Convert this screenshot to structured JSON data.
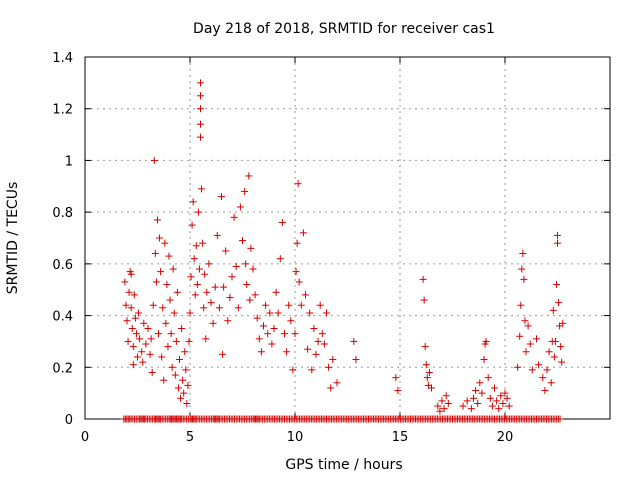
{
  "chart_data": {
    "type": "scatter",
    "title": "Day 218 of 2018, SRMTID for receiver cas1",
    "xlabel": "GPS time / hours",
    "ylabel": "SRMTID / TECUs",
    "xlim": [
      0,
      25
    ],
    "ylim": [
      0,
      1.4
    ],
    "xticks": [
      0,
      5,
      10,
      15,
      20
    ],
    "yticks": [
      0,
      0.2,
      0.4,
      0.6,
      0.8,
      1,
      1.2,
      1.4
    ],
    "xtick_labels": [
      "0",
      "5",
      "10",
      "15",
      "20"
    ],
    "ytick_labels": [
      "0",
      "0.2",
      "0.4",
      "0.6",
      "0.8",
      "1",
      "1.2",
      "1.4"
    ],
    "grid": true,
    "marker": "+",
    "color": "#d40000",
    "series": [
      {
        "name": "cas1",
        "points": [
          [
            1.9,
            0.53
          ],
          [
            1.95,
            0.44
          ],
          [
            2.0,
            0.38
          ],
          [
            2.05,
            0.3
          ],
          [
            2.1,
            0.49
          ],
          [
            2.15,
            0.57
          ],
          [
            2.2,
            0.56
          ],
          [
            2.2,
            0.43
          ],
          [
            2.25,
            0.35
          ],
          [
            2.3,
            0.28
          ],
          [
            2.3,
            0.21
          ],
          [
            2.35,
            0.48
          ],
          [
            2.4,
            0.39
          ],
          [
            2.45,
            0.33
          ],
          [
            2.5,
            0.24
          ],
          [
            2.55,
            0.41
          ],
          [
            2.6,
            0.31
          ],
          [
            2.7,
            0.26
          ],
          [
            2.75,
            0.22
          ],
          [
            2.8,
            0.37
          ],
          [
            2.9,
            0.29
          ],
          [
            3.0,
            0.35
          ],
          [
            3.1,
            0.25
          ],
          [
            3.15,
            0.31
          ],
          [
            3.2,
            0.18
          ],
          [
            3.25,
            0.44
          ],
          [
            3.3,
            1.0
          ],
          [
            3.35,
            0.64
          ],
          [
            3.4,
            0.53
          ],
          [
            3.45,
            0.77
          ],
          [
            3.5,
            0.33
          ],
          [
            3.55,
            0.7
          ],
          [
            3.6,
            0.57
          ],
          [
            3.65,
            0.24
          ],
          [
            3.7,
            0.43
          ],
          [
            3.75,
            0.15
          ],
          [
            3.8,
            0.68
          ],
          [
            3.85,
            0.37
          ],
          [
            3.9,
            0.52
          ],
          [
            3.95,
            0.28
          ],
          [
            4.0,
            0.63
          ],
          [
            4.05,
            0.46
          ],
          [
            4.1,
            0.33
          ],
          [
            4.15,
            0.2
          ],
          [
            4.2,
            0.58
          ],
          [
            4.25,
            0.41
          ],
          [
            4.3,
            0.17
          ],
          [
            4.35,
            0.3
          ],
          [
            4.4,
            0.49
          ],
          [
            4.45,
            0.12
          ],
          [
            4.5,
            0.23
          ],
          [
            4.55,
            0.08
          ],
          [
            4.6,
            0.35
          ],
          [
            4.65,
            0.15
          ],
          [
            4.7,
            0.1
          ],
          [
            4.75,
            0.26
          ],
          [
            4.8,
            0.19
          ],
          [
            4.85,
            0.06
          ],
          [
            4.9,
            0.13
          ],
          [
            4.95,
            0.3
          ],
          [
            5.0,
            0.41
          ],
          [
            5.05,
            0.55
          ],
          [
            5.1,
            0.75
          ],
          [
            5.15,
            0.84
          ],
          [
            5.2,
            0.62
          ],
          [
            5.25,
            0.48
          ],
          [
            5.3,
            0.67
          ],
          [
            5.35,
            0.52
          ],
          [
            5.4,
            0.8
          ],
          [
            5.45,
            0.58
          ],
          [
            5.5,
            1.3
          ],
          [
            5.5,
            1.25
          ],
          [
            5.5,
            1.2
          ],
          [
            5.5,
            1.14
          ],
          [
            5.5,
            1.09
          ],
          [
            5.55,
            0.89
          ],
          [
            5.6,
            0.68
          ],
          [
            5.65,
            0.43
          ],
          [
            5.7,
            0.56
          ],
          [
            5.75,
            0.31
          ],
          [
            5.8,
            0.49
          ],
          [
            5.9,
            0.6
          ],
          [
            6.0,
            0.45
          ],
          [
            6.1,
            0.37
          ],
          [
            6.2,
            0.51
          ],
          [
            6.3,
            0.71
          ],
          [
            6.4,
            0.43
          ],
          [
            6.5,
            0.86
          ],
          [
            6.55,
            0.25
          ],
          [
            6.6,
            0.51
          ],
          [
            6.7,
            0.65
          ],
          [
            6.8,
            0.38
          ],
          [
            6.9,
            0.47
          ],
          [
            7.0,
            0.55
          ],
          [
            7.1,
            0.78
          ],
          [
            7.2,
            0.59
          ],
          [
            7.3,
            0.43
          ],
          [
            7.4,
            0.82
          ],
          [
            7.5,
            0.69
          ],
          [
            7.6,
            0.88
          ],
          [
            7.65,
            0.6
          ],
          [
            7.7,
            0.52
          ],
          [
            7.8,
            0.94
          ],
          [
            7.85,
            0.46
          ],
          [
            7.9,
            0.66
          ],
          [
            8.0,
            0.58
          ],
          [
            8.1,
            0.48
          ],
          [
            8.2,
            0.39
          ],
          [
            8.3,
            0.31
          ],
          [
            8.4,
            0.26
          ],
          [
            8.5,
            0.36
          ],
          [
            8.6,
            0.44
          ],
          [
            8.7,
            0.33
          ],
          [
            8.8,
            0.41
          ],
          [
            8.9,
            0.29
          ],
          [
            9.0,
            0.35
          ],
          [
            9.1,
            0.49
          ],
          [
            9.2,
            0.41
          ],
          [
            9.3,
            0.62
          ],
          [
            9.4,
            0.76
          ],
          [
            9.5,
            0.33
          ],
          [
            9.6,
            0.26
          ],
          [
            9.7,
            0.44
          ],
          [
            9.8,
            0.38
          ],
          [
            9.9,
            0.19
          ],
          [
            10.0,
            0.33
          ],
          [
            10.05,
            0.57
          ],
          [
            10.1,
            0.68
          ],
          [
            10.15,
            0.91
          ],
          [
            10.2,
            0.53
          ],
          [
            10.3,
            0.44
          ],
          [
            10.4,
            0.72
          ],
          [
            10.5,
            0.48
          ],
          [
            10.6,
            0.27
          ],
          [
            10.7,
            0.41
          ],
          [
            10.8,
            0.19
          ],
          [
            10.9,
            0.35
          ],
          [
            11.0,
            0.25
          ],
          [
            11.1,
            0.3
          ],
          [
            11.2,
            0.44
          ],
          [
            11.3,
            0.33
          ],
          [
            11.4,
            0.29
          ],
          [
            11.5,
            0.41
          ],
          [
            11.6,
            0.2
          ],
          [
            11.7,
            0.12
          ],
          [
            11.8,
            0.23
          ],
          [
            12.0,
            0.14
          ],
          [
            12.8,
            0.3
          ],
          [
            12.9,
            0.23
          ],
          [
            14.8,
            0.16
          ],
          [
            14.9,
            0.11
          ],
          [
            16.1,
            0.54
          ],
          [
            16.15,
            0.46
          ],
          [
            16.2,
            0.28
          ],
          [
            16.25,
            0.21
          ],
          [
            16.3,
            0.16
          ],
          [
            16.35,
            0.13
          ],
          [
            16.4,
            0.18
          ],
          [
            16.5,
            0.12
          ],
          [
            16.8,
            0.05
          ],
          [
            16.9,
            0.03
          ],
          [
            17.0,
            0.07
          ],
          [
            17.1,
            0.04
          ],
          [
            17.2,
            0.09
          ],
          [
            17.3,
            0.06
          ],
          [
            18.0,
            0.05
          ],
          [
            18.2,
            0.07
          ],
          [
            18.4,
            0.04
          ],
          [
            18.5,
            0.08
          ],
          [
            18.6,
            0.11
          ],
          [
            18.7,
            0.06
          ],
          [
            18.8,
            0.14
          ],
          [
            18.9,
            0.1
          ],
          [
            19.0,
            0.23
          ],
          [
            19.05,
            0.29
          ],
          [
            19.1,
            0.3
          ],
          [
            19.2,
            0.16
          ],
          [
            19.3,
            0.08
          ],
          [
            19.4,
            0.05
          ],
          [
            19.5,
            0.12
          ],
          [
            19.6,
            0.07
          ],
          [
            19.7,
            0.04
          ],
          [
            19.8,
            0.09
          ],
          [
            19.9,
            0.06
          ],
          [
            20.0,
            0.1
          ],
          [
            20.1,
            0.08
          ],
          [
            20.2,
            0.05
          ],
          [
            20.6,
            0.2
          ],
          [
            20.7,
            0.32
          ],
          [
            20.75,
            0.44
          ],
          [
            20.8,
            0.58
          ],
          [
            20.85,
            0.64
          ],
          [
            20.9,
            0.54
          ],
          [
            20.95,
            0.38
          ],
          [
            21.0,
            0.26
          ],
          [
            21.1,
            0.36
          ],
          [
            21.2,
            0.29
          ],
          [
            21.3,
            0.19
          ],
          [
            21.5,
            0.31
          ],
          [
            21.6,
            0.21
          ],
          [
            21.8,
            0.16
          ],
          [
            21.9,
            0.11
          ],
          [
            22.0,
            0.19
          ],
          [
            22.1,
            0.26
          ],
          [
            22.2,
            0.14
          ],
          [
            22.25,
            0.3
          ],
          [
            22.3,
            0.42
          ],
          [
            22.35,
            0.24
          ],
          [
            22.4,
            0.3
          ],
          [
            22.45,
            0.52
          ],
          [
            22.5,
            0.71
          ],
          [
            22.5,
            0.68
          ],
          [
            22.55,
            0.45
          ],
          [
            22.6,
            0.36
          ],
          [
            22.65,
            0.28
          ],
          [
            22.7,
            0.22
          ],
          [
            22.75,
            0.37
          ]
        ],
        "zero_baseline_x": [
          1.85,
          2.2,
          2.6,
          2.9,
          3.3,
          3.6,
          4.0,
          4.3,
          4.6,
          5.0,
          5.3,
          5.7,
          6.1,
          6.4,
          6.8,
          7.2,
          7.6,
          8.0,
          8.3,
          8.7,
          9.1,
          9.5,
          9.9,
          10.3,
          10.7,
          11.1,
          11.5,
          11.9,
          12.3,
          12.7,
          13.1,
          13.5,
          13.9,
          14.3,
          14.7,
          15.1,
          15.5,
          15.9,
          16.3,
          16.7,
          17.1,
          17.5,
          17.9,
          18.3,
          18.7,
          19.1,
          19.5,
          19.9,
          20.3,
          20.7,
          21.1,
          21.5,
          21.9,
          22.3,
          22.7
        ]
      }
    ]
  }
}
